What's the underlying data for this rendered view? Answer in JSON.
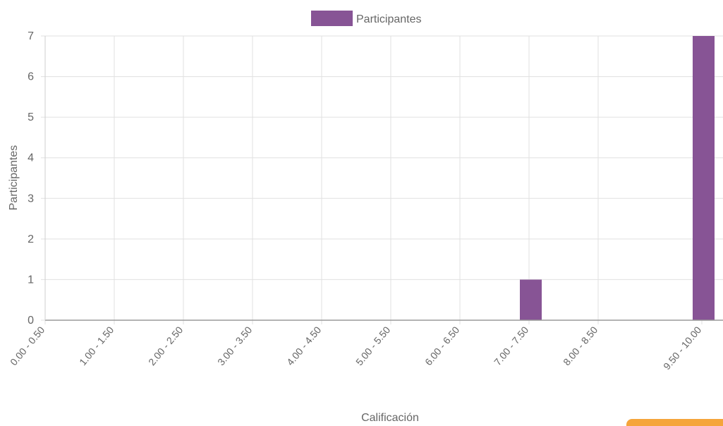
{
  "chart_data": {
    "type": "bar",
    "categories": [
      "0.00 - 0.50",
      "1.00 - 1.50",
      "2.00 - 2.50",
      "3.00 - 3.50",
      "4.00 - 4.50",
      "5.00 - 5.50",
      "6.00 - 6.50",
      "7.00 - 7.50",
      "8.00 - 8.50",
      "9.50 - 10.00"
    ],
    "series": [
      {
        "name": "Participantes",
        "values": [
          0,
          0,
          0,
          0,
          0,
          0,
          0,
          1,
          0,
          7
        ],
        "color": "#875495"
      }
    ],
    "xlabel": "Calificación",
    "ylabel": "Participantes",
    "ylim": [
      0,
      7
    ],
    "yticks": [
      0,
      1,
      2,
      3,
      4,
      5,
      6,
      7
    ],
    "grid": true,
    "legend_position": "top-center",
    "colors": {
      "bar": "#875495",
      "grid": "#e0e0e0",
      "text": "#666666",
      "accent_button": "#f5a53b"
    }
  }
}
